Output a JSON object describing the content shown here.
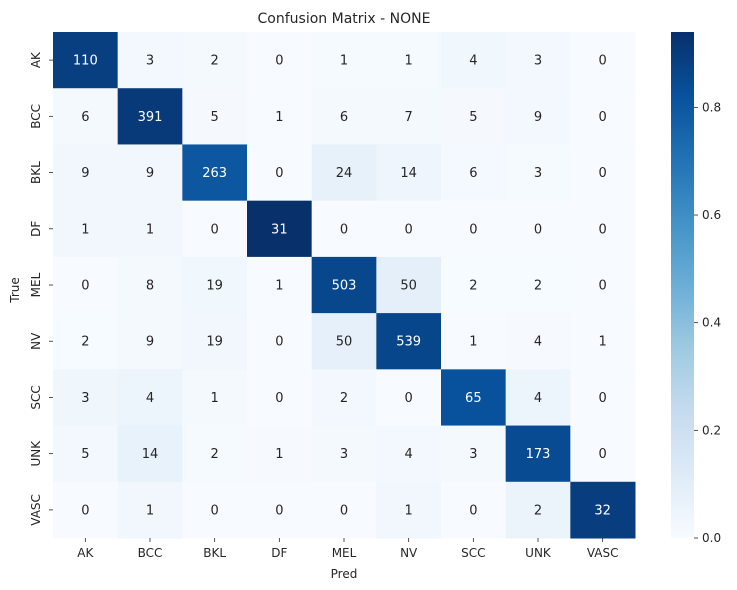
{
  "chart_data": {
    "type": "heatmap",
    "title": "Confusion Matrix - NONE",
    "xlabel": "Pred",
    "ylabel": "True",
    "x_categories": [
      "AK",
      "BCC",
      "BKL",
      "DF",
      "MEL",
      "NV",
      "SCC",
      "UNK",
      "VASC"
    ],
    "y_categories": [
      "AK",
      "BCC",
      "BKL",
      "DF",
      "MEL",
      "NV",
      "SCC",
      "UNK",
      "VASC"
    ],
    "values": [
      [
        110,
        3,
        2,
        0,
        1,
        1,
        4,
        3,
        0
      ],
      [
        6,
        391,
        5,
        1,
        6,
        7,
        5,
        9,
        0
      ],
      [
        9,
        9,
        263,
        0,
        24,
        14,
        6,
        3,
        0
      ],
      [
        1,
        1,
        0,
        31,
        0,
        0,
        0,
        0,
        0
      ],
      [
        0,
        8,
        19,
        1,
        503,
        50,
        2,
        2,
        0
      ],
      [
        2,
        9,
        19,
        0,
        50,
        539,
        1,
        4,
        1
      ],
      [
        3,
        4,
        1,
        0,
        2,
        0,
        65,
        4,
        0
      ],
      [
        5,
        14,
        2,
        1,
        3,
        4,
        3,
        173,
        0
      ],
      [
        0,
        1,
        0,
        0,
        0,
        1,
        0,
        2,
        32
      ]
    ],
    "color_normalization": "row",
    "colormap": "Blues",
    "colorbar": {
      "range": [
        0,
        0.94
      ],
      "ticks": [
        0.0,
        0.2,
        0.4,
        0.6,
        0.8
      ],
      "tick_labels": [
        "0.0",
        "0.2",
        "0.4",
        "0.6",
        "0.8"
      ]
    }
  }
}
